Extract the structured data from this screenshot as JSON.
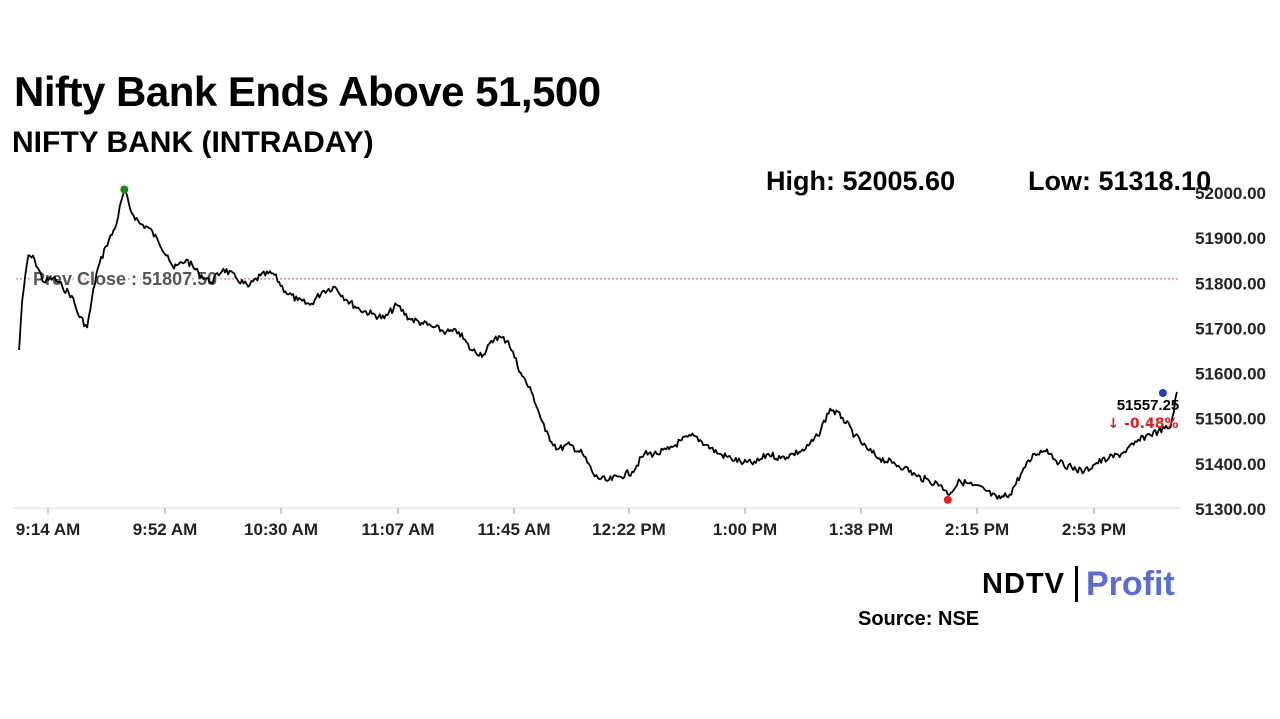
{
  "title": "Nifty Bank Ends Above 51,500",
  "subtitle": "NIFTY BANK (INTRADAY)",
  "stats": {
    "high_label": "High: 52005.60",
    "low_label": "Low: 51318.10"
  },
  "source": "Source: NSE",
  "logo": {
    "left": "NDTV",
    "right": "Profit"
  },
  "colors": {
    "line": "#000000",
    "high_marker": "#1a8a1a",
    "low_marker": "#e02020",
    "last_marker": "#1f3fbf",
    "prev_close_line": "#e05050",
    "change_text": "#e02020",
    "logo_profit": "#5b6bd8"
  },
  "chart_data": {
    "type": "line",
    "title": "NIFTY BANK (INTRADAY)",
    "xlabel": "",
    "ylabel": "",
    "x_ticks": [
      "9:14 AM",
      "9:52 AM",
      "10:30 AM",
      "11:07 AM",
      "11:45 AM",
      "12:22 PM",
      "1:00 PM",
      "1:38 PM",
      "2:15 PM",
      "2:53 PM"
    ],
    "y_ticks": [
      "51300.00",
      "51400.00",
      "51500.00",
      "51600.00",
      "51700.00",
      "51800.00",
      "51900.00",
      "52000.00"
    ],
    "ylim": [
      51300,
      52000
    ],
    "grid": false,
    "prev_close": {
      "label": "Prev Close : 51807.50",
      "value": 51807.5
    },
    "high": {
      "time": "9:49 AM",
      "value": 52005.6
    },
    "low": {
      "time": "2:15 PM",
      "value": 51318.1
    },
    "last": {
      "time": "3:29 PM",
      "value": 51557.25,
      "label": "51557.25",
      "change_label": "↓ -0.48%"
    },
    "series": [
      {
        "x": [
          "9:15 AM",
          "9:16 AM",
          "9:18 AM",
          "9:20 AM",
          "9:23 AM",
          "9:26 AM",
          "9:29 AM",
          "9:32 AM",
          "9:34 AM",
          "9:37 AM",
          "9:40 AM",
          "9:43 AM",
          "9:46 AM",
          "9:49 AM",
          "9:51 AM",
          "9:54 AM",
          "9:57 AM",
          "10:00 AM",
          "10:03 AM",
          "10:05 AM",
          "10:09 AM",
          "10:13 AM",
          "10:17 AM",
          "10:21 AM",
          "10:25 AM",
          "10:29 AM",
          "10:33 AM",
          "10:37 AM",
          "10:41 AM",
          "10:45 AM",
          "10:49 AM",
          "10:53 AM",
          "10:57 AM",
          "11:01 AM",
          "11:05 AM",
          "11:09 AM",
          "11:13 AM",
          "11:17 AM",
          "11:21 AM",
          "11:25 AM",
          "11:29 AM",
          "11:33 AM",
          "11:37 AM",
          "11:41 AM",
          "11:45 AM",
          "11:49 AM",
          "11:53 AM",
          "11:57 AM",
          "12:01 PM",
          "12:05 PM",
          "12:09 PM",
          "12:13 PM",
          "12:17 PM",
          "12:21 PM",
          "12:25 PM",
          "12:29 PM",
          "12:33 PM",
          "12:37 PM",
          "12:41 PM",
          "12:45 PM",
          "12:49 PM",
          "12:53 PM",
          "12:57 PM",
          "1:01 PM",
          "1:05 PM",
          "1:09 PM",
          "1:13 PM",
          "1:17 PM",
          "1:21 PM",
          "1:25 PM",
          "1:29 PM",
          "1:33 PM",
          "1:37 PM",
          "1:41 PM",
          "1:45 PM",
          "1:49 PM",
          "1:53 PM",
          "1:57 PM",
          "2:01 PM",
          "2:05 PM",
          "2:09 PM",
          "2:13 PM",
          "2:15 PM",
          "2:19 PM",
          "2:23 PM",
          "2:27 PM",
          "2:31 PM",
          "2:35 PM",
          "2:39 PM",
          "2:43 PM",
          "2:47 PM",
          "2:51 PM",
          "2:55 PM",
          "2:59 PM",
          "3:03 PM",
          "3:07 PM",
          "3:11 PM",
          "3:15 PM",
          "3:19 PM",
          "3:23 PM",
          "3:27 PM",
          "3:29 PM"
        ],
        "values": [
          51650,
          51760,
          51860,
          51850,
          51800,
          51810,
          51790,
          51770,
          51730,
          51700,
          51820,
          51880,
          51920,
          52005,
          51960,
          51930,
          51920,
          51890,
          51860,
          51830,
          51850,
          51820,
          51800,
          51830,
          51810,
          51790,
          51815,
          51820,
          51780,
          51760,
          51750,
          51780,
          51790,
          51760,
          51740,
          51730,
          51720,
          51750,
          51720,
          51710,
          51700,
          51690,
          51690,
          51650,
          51640,
          51680,
          51670,
          51600,
          51550,
          51470,
          51430,
          51440,
          51420,
          51370,
          51360,
          51370,
          51380,
          51420,
          51420,
          51430,
          51450,
          51460,
          51440,
          51420,
          51410,
          51400,
          51400,
          51420,
          51410,
          51420,
          51430,
          51460,
          51520,
          51500,
          51460,
          51430,
          51410,
          51400,
          51390,
          51370,
          51360,
          51350,
          51330,
          51360,
          51350,
          51340,
          51320,
          51330,
          51380,
          51420,
          51430,
          51400,
          51390,
          51380,
          51400,
          51410,
          51420,
          51440,
          51460,
          51470,
          51480,
          51557.25
        ]
      }
    ]
  }
}
